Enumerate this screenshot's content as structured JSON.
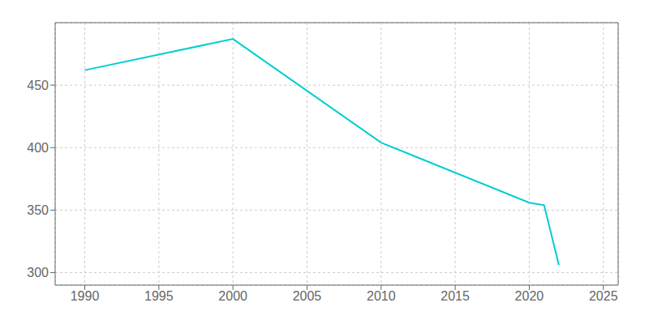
{
  "chart_data": {
    "type": "line",
    "x": [
      1990,
      2000,
      2010,
      2020,
      2021,
      2022
    ],
    "values": [
      462,
      487,
      404,
      356,
      354,
      306
    ],
    "color": "#00CED1",
    "xlim": [
      1988,
      2026
    ],
    "xticks": [
      1990,
      1995,
      2000,
      2005,
      2010,
      2015,
      2020,
      2025
    ],
    "ylim": [
      290,
      500
    ],
    "yticks": [
      300,
      350,
      400,
      450
    ],
    "grid": true
  }
}
